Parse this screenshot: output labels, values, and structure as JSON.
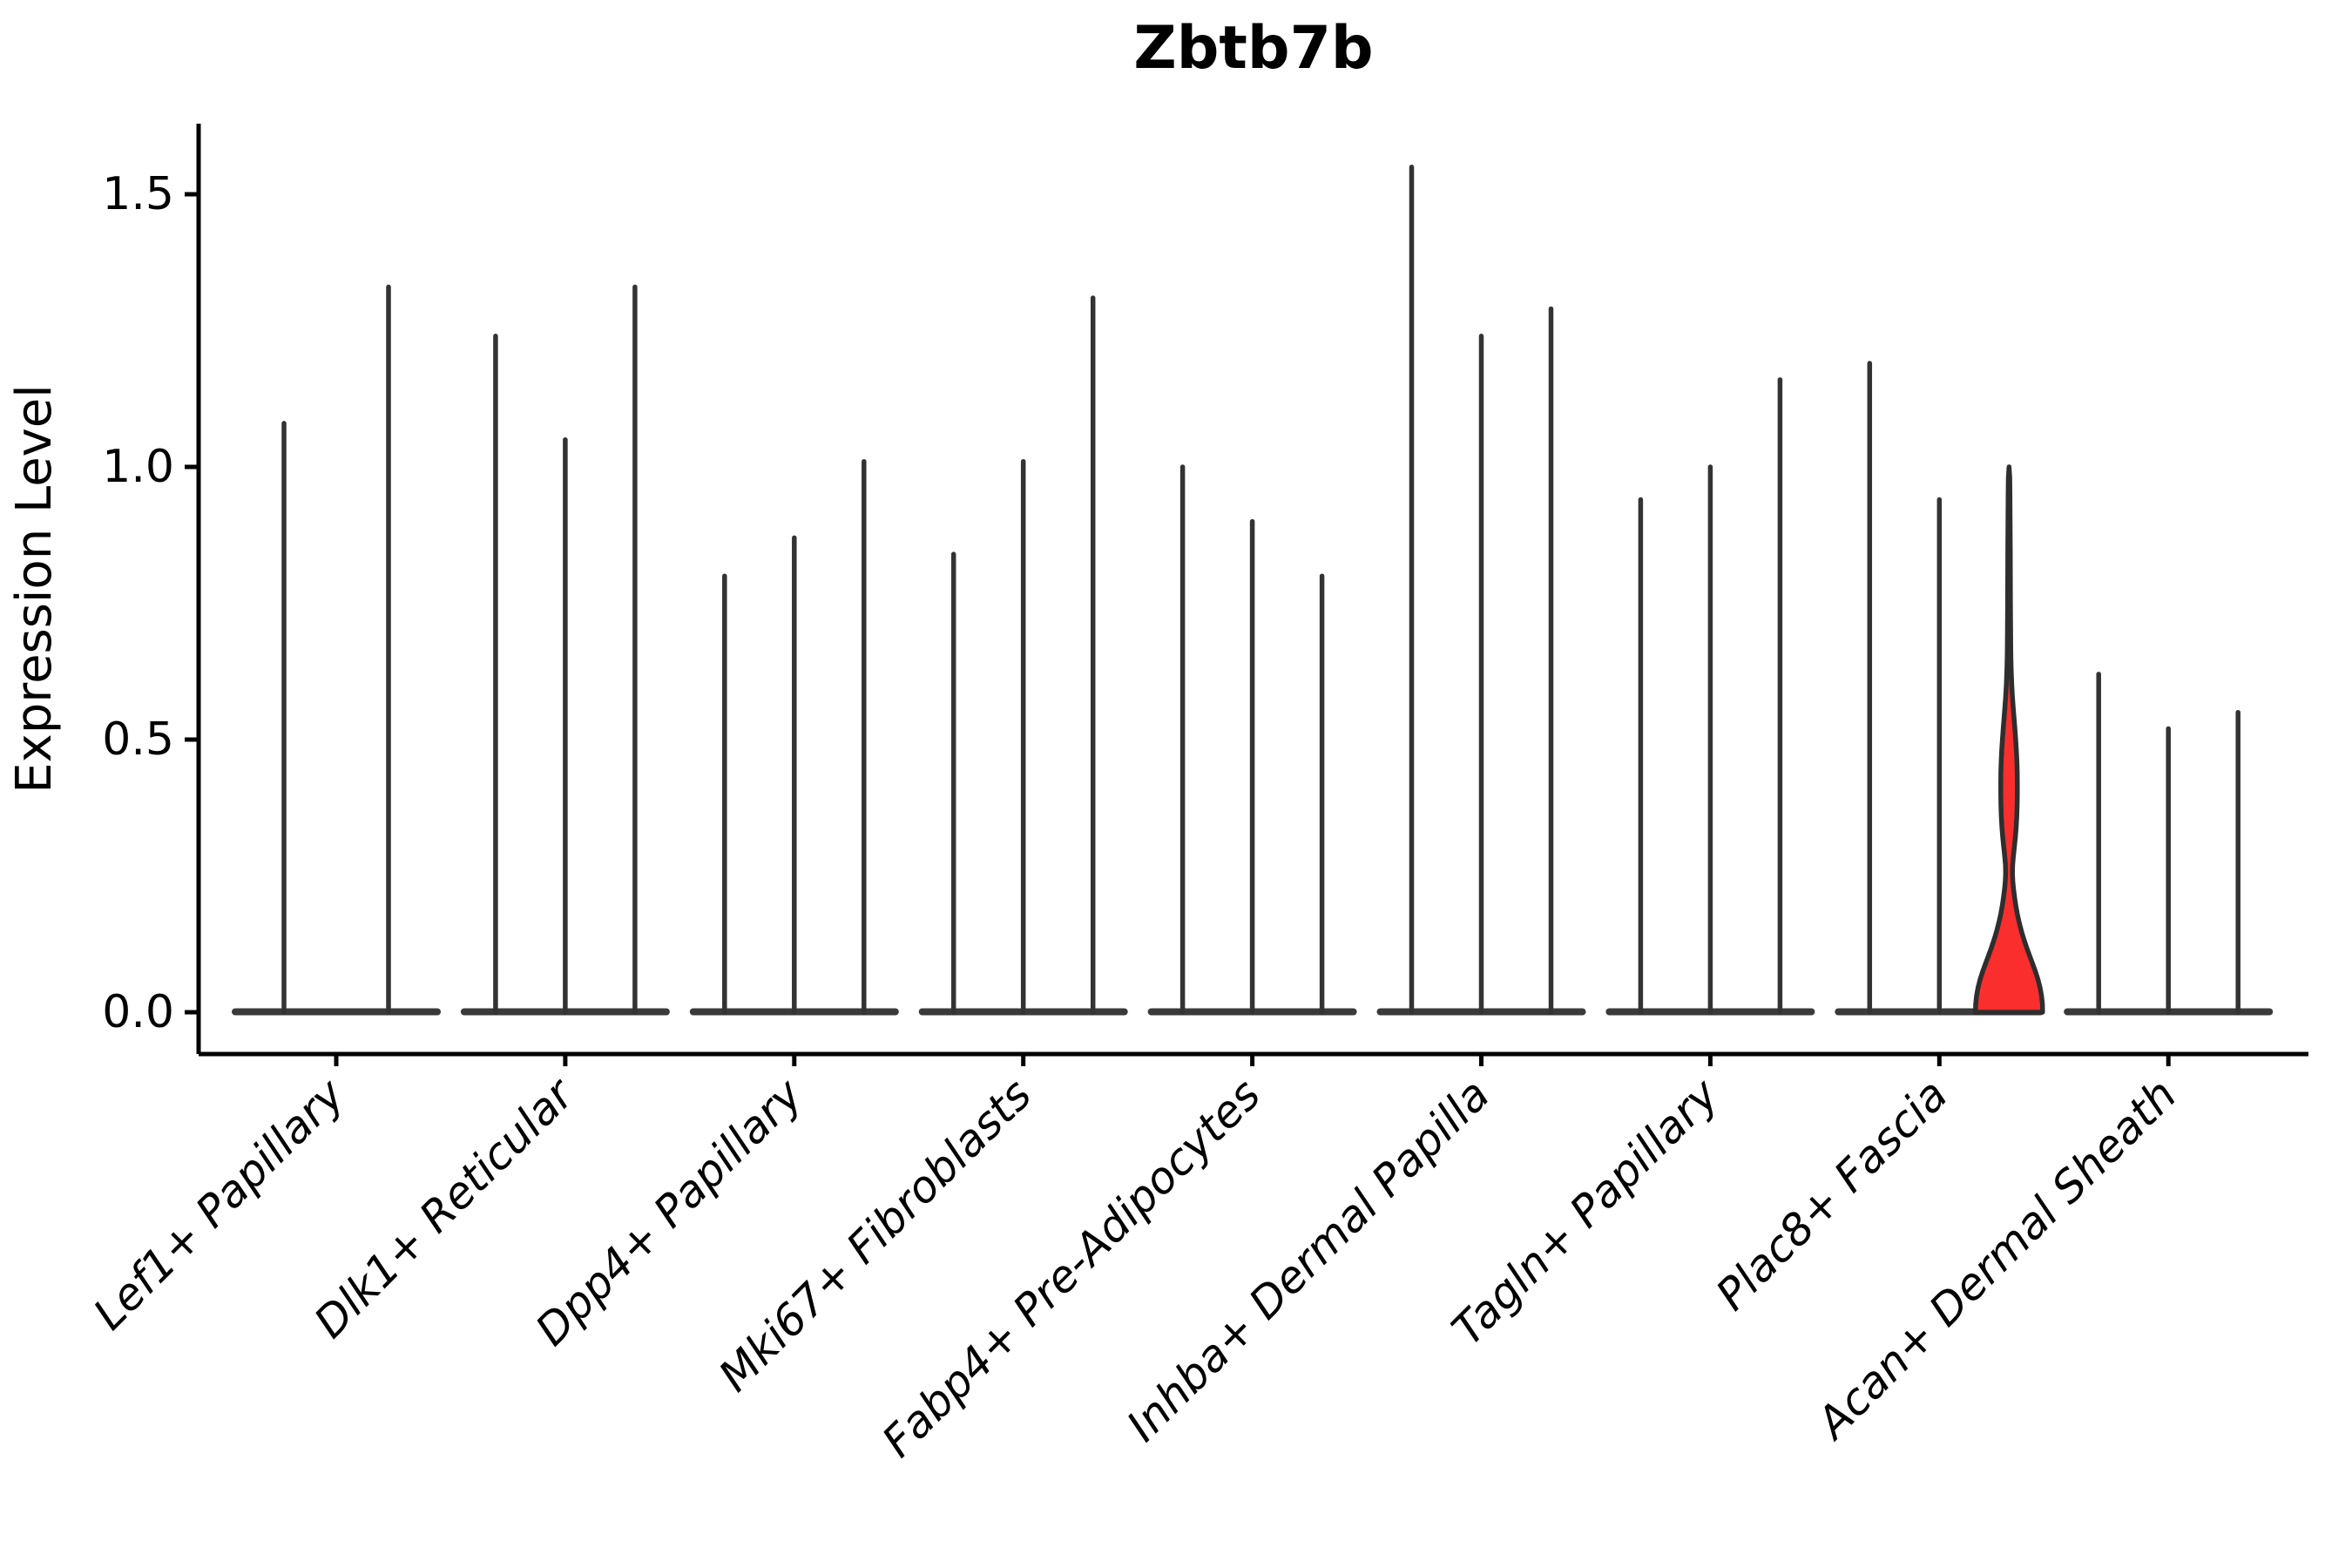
{
  "chart_data": {
    "type": "violin",
    "title": "Zbtb7b",
    "ylabel": "Expression Level",
    "xlabel": "",
    "ylim": [
      -0.077,
      1.63
    ],
    "yticks": [
      0.0,
      0.5,
      1.0,
      1.5
    ],
    "ytick_labels": [
      "0.0",
      "0.5",
      "1.0",
      "1.5"
    ],
    "grid": false,
    "legend": "none",
    "categories": [
      "Lef1+ Papillary",
      "Dlk1+ Reticular",
      "Dpp4+ Papillary",
      "Mki67+ Fibroblasts",
      "Fabp4+ Pre-Adipocytes",
      "Inhba+ Dermal Papilla",
      "Tagln+ Papillary",
      "Plac8+ Fascia",
      "Acan+ Dermal Sheath"
    ],
    "violins": [
      {
        "category": "Lef1+ Papillary",
        "maxima": [
          1.08,
          1.33
        ],
        "highlight_index": null
      },
      {
        "category": "Dlk1+ Reticular",
        "maxima": [
          1.24,
          1.05,
          1.33
        ],
        "highlight_index": null
      },
      {
        "category": "Dpp4+ Papillary",
        "maxima": [
          0.8,
          0.87,
          1.01
        ],
        "highlight_index": null
      },
      {
        "category": "Mki67+ Fibroblasts",
        "maxima": [
          0.84,
          1.01,
          1.31
        ],
        "highlight_index": null
      },
      {
        "category": "Fabp4+ Pre-Adipocytes",
        "maxima": [
          1.0,
          0.9,
          0.8
        ],
        "highlight_index": null
      },
      {
        "category": "Inhba+ Dermal Papilla",
        "maxima": [
          1.55,
          1.24,
          1.29
        ],
        "highlight_index": null
      },
      {
        "category": "Tagln+ Papillary",
        "maxima": [
          0.94,
          1.0,
          1.16
        ],
        "highlight_index": null
      },
      {
        "category": "Plac8+ Fascia",
        "maxima": [
          1.19,
          0.94,
          1.0
        ],
        "highlight_index": 2
      },
      {
        "category": "Acan+ Dermal Sheath",
        "maxima": [
          0.62,
          0.52,
          0.55
        ],
        "highlight_index": null
      }
    ],
    "highlighted_violin": {
      "category": "Plac8+ Fascia",
      "position_in_group": 3,
      "max_expression": 1.0,
      "fill": "#fb2e2e",
      "outline": "#2e2e2e",
      "density_profile_v_halfwidth": [
        [
          0.0,
          38.5
        ],
        [
          0.015,
          38.3
        ],
        [
          0.03,
          37.3
        ],
        [
          0.045,
          35.6
        ],
        [
          0.06,
          33.2
        ],
        [
          0.075,
          30.2
        ],
        [
          0.09,
          26.8
        ],
        [
          0.105,
          23.3
        ],
        [
          0.12,
          19.9
        ],
        [
          0.135,
          16.8
        ],
        [
          0.15,
          14.0
        ],
        [
          0.165,
          11.6
        ],
        [
          0.18,
          9.5
        ],
        [
          0.195,
          7.8
        ],
        [
          0.21,
          6.4
        ],
        [
          0.225,
          5.2
        ],
        [
          0.24,
          4.3
        ],
        [
          0.255,
          3.9
        ],
        [
          0.27,
          4.1
        ],
        [
          0.285,
          4.9
        ],
        [
          0.3,
          5.9
        ],
        [
          0.32,
          7.2
        ],
        [
          0.34,
          8.2
        ],
        [
          0.36,
          8.9
        ],
        [
          0.38,
          9.3
        ],
        [
          0.4,
          9.5
        ],
        [
          0.42,
          9.5
        ],
        [
          0.44,
          9.4
        ],
        [
          0.46,
          9.0
        ],
        [
          0.48,
          8.4
        ],
        [
          0.5,
          7.6
        ],
        [
          0.52,
          6.7
        ],
        [
          0.54,
          5.7
        ],
        [
          0.56,
          4.7
        ],
        [
          0.58,
          3.8
        ],
        [
          0.6,
          3.1
        ],
        [
          0.63,
          2.4
        ],
        [
          0.66,
          2.0
        ],
        [
          0.7,
          1.8
        ],
        [
          0.75,
          1.6
        ],
        [
          0.8,
          1.5
        ],
        [
          0.85,
          1.4
        ],
        [
          0.9,
          1.2
        ],
        [
          0.95,
          1.0
        ],
        [
          0.98,
          0.8
        ],
        [
          1.0,
          0.0
        ]
      ]
    },
    "colors": {
      "background": "#ffffff",
      "axis": "#000000",
      "violin_line": "#333333",
      "baseline_bar": "#3a3a3a",
      "highlight_fill": "#fb2e2e",
      "highlight_outline": "#2e2e2e"
    }
  }
}
